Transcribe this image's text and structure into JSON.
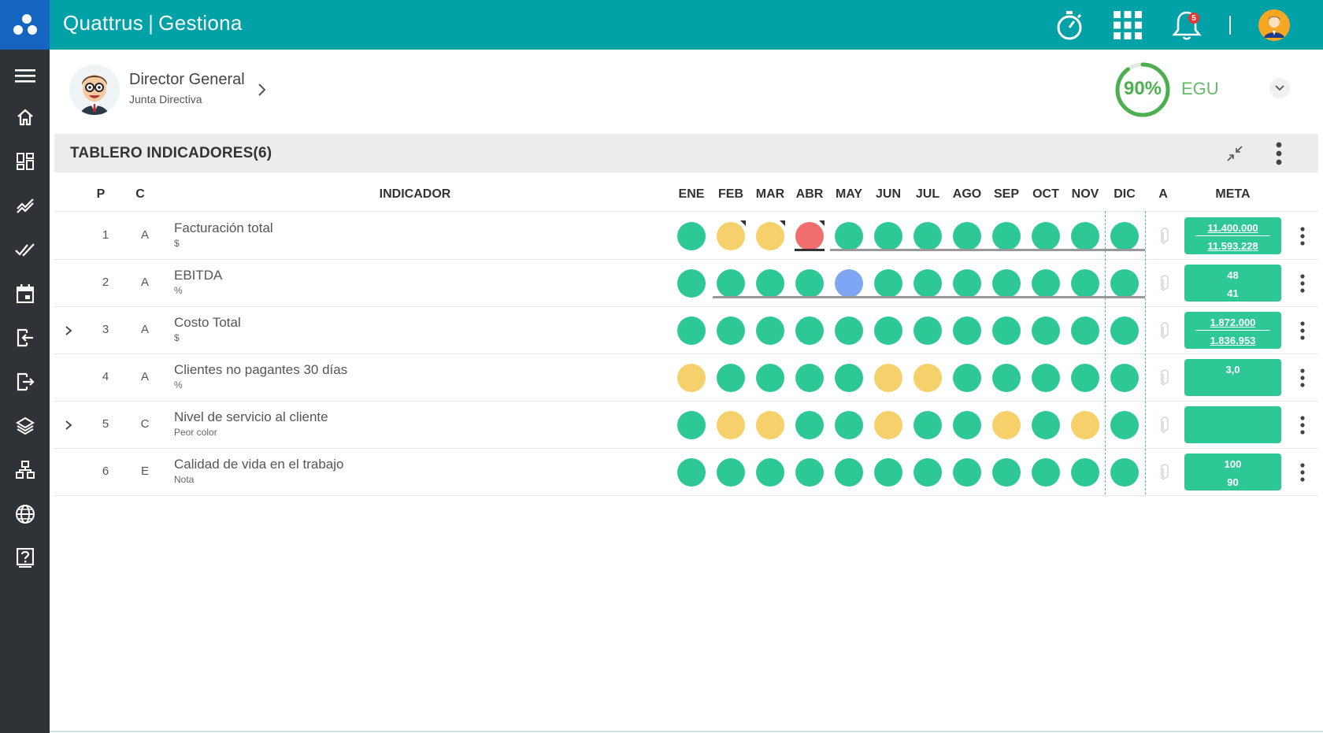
{
  "app": {
    "name": "Quattrus",
    "module": "Gestiona",
    "separator": "|"
  },
  "topbar": {
    "notification_count": "5",
    "icons": [
      "timer-icon",
      "apps-grid-icon",
      "bell-icon",
      "user-avatar-icon"
    ]
  },
  "sidebar": {
    "items": [
      "menu-icon",
      "home-icon",
      "dashboard-icon",
      "trend-icon",
      "check-icon",
      "calendar-icon",
      "login-icon",
      "logout-icon",
      "layers-icon",
      "org-chart-icon",
      "globe-icon",
      "help-icon"
    ]
  },
  "user": {
    "name": "Director General",
    "role": "Junta Directiva"
  },
  "score": {
    "value": "90%",
    "percent": 90,
    "label": "EGU"
  },
  "panel": {
    "title": "TABLERO INDICADORES(6)"
  },
  "columns": {
    "p": "P",
    "c": "C",
    "indicator": "INDICADOR",
    "months": [
      "ENE",
      "FEB",
      "MAR",
      "ABR",
      "MAY",
      "JUN",
      "JUL",
      "AGO",
      "SEP",
      "OCT",
      "NOV",
      "DIC"
    ],
    "a": "A",
    "meta": "META"
  },
  "colors": {
    "green": "#2ec896",
    "yellow": "#f5d06b",
    "red": "#f26d6d",
    "blue": "#7ea6f5",
    "teal": "#00a1a7"
  },
  "rows": [
    {
      "p": "1",
      "c": "A",
      "name": "Facturación total",
      "unit": "$",
      "expandable": false,
      "dots": [
        "green",
        "yellow",
        "yellow",
        "red",
        "green",
        "green",
        "green",
        "green",
        "green",
        "green",
        "green",
        "green"
      ],
      "flags": [
        1,
        2,
        3
      ],
      "meta": [
        "11.400.000",
        "11.593.228"
      ],
      "meta_underline": true
    },
    {
      "p": "2",
      "c": "A",
      "name": "EBITDA",
      "unit": "%",
      "expandable": false,
      "dots": [
        "green",
        "green",
        "green",
        "green",
        "blue",
        "green",
        "green",
        "green",
        "green",
        "green",
        "green",
        "green"
      ],
      "flags": [],
      "meta": [
        "48",
        "41"
      ],
      "meta_underline": false
    },
    {
      "p": "3",
      "c": "A",
      "name": "Costo Total",
      "unit": "$",
      "expandable": true,
      "dots": [
        "green",
        "green",
        "green",
        "green",
        "green",
        "green",
        "green",
        "green",
        "green",
        "green",
        "green",
        "green"
      ],
      "flags": [],
      "meta": [
        "1.872.000",
        "1.836.953"
      ],
      "meta_underline": true
    },
    {
      "p": "4",
      "c": "A",
      "name": "Clientes no pagantes 30 días",
      "unit": "%",
      "expandable": false,
      "dots": [
        "yellow",
        "green",
        "green",
        "green",
        "green",
        "yellow",
        "yellow",
        "green",
        "green",
        "green",
        "green",
        "green"
      ],
      "flags": [],
      "meta": [
        "3,0"
      ],
      "meta_underline": false
    },
    {
      "p": "5",
      "c": "C",
      "name": "Nivel de servicio al cliente",
      "unit": "Peor color",
      "expandable": true,
      "dots": [
        "green",
        "yellow",
        "yellow",
        "green",
        "green",
        "yellow",
        "green",
        "green",
        "yellow",
        "green",
        "yellow",
        "green"
      ],
      "flags": [],
      "meta": [],
      "meta_underline": false
    },
    {
      "p": "6",
      "c": "E",
      "name": "Calidad de vida en el trabajo",
      "unit": "Nota",
      "expandable": false,
      "dots": [
        "green",
        "green",
        "green",
        "green",
        "green",
        "green",
        "green",
        "green",
        "green",
        "green",
        "green",
        "green"
      ],
      "flags": [],
      "meta": [
        "100",
        "90"
      ],
      "meta_underline": false
    }
  ]
}
